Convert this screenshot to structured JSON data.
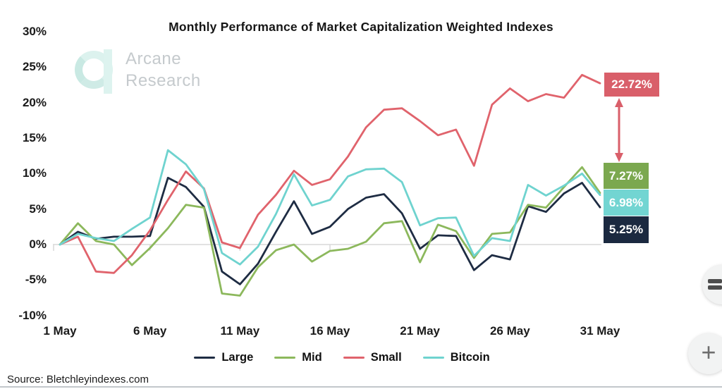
{
  "page": {
    "source_text": "Source: Bletchleyindexes.com"
  },
  "watermark": {
    "line1": "Arcane",
    "line2": "Research"
  },
  "chart_data": {
    "type": "line",
    "title": "Monthly Performance of Market Capitalization Weighted Indexes",
    "xlabel": "",
    "ylabel": "",
    "ylim": [
      -10,
      30
    ],
    "grid": "zero-line-only",
    "zero_line_color": "#d9d9d9",
    "legend_position": "bottom",
    "x_days": [
      1,
      2,
      3,
      4,
      5,
      6,
      7,
      8,
      9,
      10,
      11,
      12,
      13,
      14,
      15,
      16,
      17,
      18,
      19,
      20,
      21,
      22,
      23,
      24,
      25,
      26,
      27,
      28,
      29,
      30,
      31
    ],
    "xticks": [
      {
        "label": "1 May",
        "day": 1
      },
      {
        "label": "6 May",
        "day": 6
      },
      {
        "label": "11 May",
        "day": 11
      },
      {
        "label": "16 May",
        "day": 16
      },
      {
        "label": "21 May",
        "day": 21
      },
      {
        "label": "26 May",
        "day": 26
      },
      {
        "label": "31 May",
        "day": 31
      }
    ],
    "yticks": [
      {
        "label": "30%",
        "value": 30
      },
      {
        "label": "25%",
        "value": 25
      },
      {
        "label": "20%",
        "value": 20
      },
      {
        "label": "15%",
        "value": 15
      },
      {
        "label": "10%",
        "value": 10
      },
      {
        "label": "5%",
        "value": 5
      },
      {
        "label": "0%",
        "value": 0
      },
      {
        "label": "-5%",
        "value": -5
      },
      {
        "label": "-10%",
        "value": -10
      }
    ],
    "series": [
      {
        "name": "Large",
        "color": "#1e2c43",
        "values": [
          0,
          1.8,
          0.8,
          1.1,
          1.1,
          1.2,
          9.4,
          8.1,
          5.3,
          -3.8,
          -5.6,
          -2.7,
          1.8,
          6.1,
          1.5,
          2.5,
          5.0,
          6.6,
          7.1,
          4.4,
          -0.6,
          1.3,
          1.2,
          -3.6,
          -1.5,
          -2.1,
          5.4,
          4.6,
          7.2,
          8.7,
          5.25
        ]
      },
      {
        "name": "Mid",
        "color": "#8cb85c",
        "values": [
          0,
          3.0,
          0.5,
          0.0,
          -2.9,
          -0.5,
          2.3,
          5.6,
          5.2,
          -6.9,
          -7.2,
          -3.2,
          -0.8,
          0.0,
          -2.4,
          -0.9,
          -0.6,
          0.4,
          3.0,
          3.3,
          -2.5,
          2.8,
          1.9,
          -1.9,
          1.5,
          1.7,
          5.6,
          5.2,
          8.1,
          10.9,
          7.27
        ]
      },
      {
        "name": "Small",
        "color": "#e0636c",
        "values": [
          0,
          1.1,
          -3.8,
          -4.0,
          -1.5,
          2.0,
          6.3,
          10.3,
          7.9,
          0.3,
          -0.5,
          4.2,
          7.0,
          10.4,
          8.4,
          9.2,
          12.4,
          16.5,
          19.0,
          19.2,
          17.4,
          15.4,
          16.2,
          11.1,
          19.7,
          22.0,
          20.2,
          21.2,
          20.7,
          23.9,
          22.72
        ]
      },
      {
        "name": "Bitcoin",
        "color": "#6fd3cf",
        "values": [
          0,
          1.5,
          0.9,
          0.5,
          2.2,
          3.8,
          13.3,
          11.3,
          7.8,
          -1.2,
          -2.8,
          -0.3,
          4.3,
          9.9,
          5.5,
          6.3,
          9.6,
          10.6,
          10.7,
          8.8,
          2.7,
          3.7,
          3.8,
          -1.6,
          0.9,
          0.5,
          8.4,
          6.9,
          8.3,
          10.0,
          6.98
        ]
      }
    ],
    "end_labels": [
      {
        "text": "22.72%",
        "bg": "#d95f6a",
        "series": "Small"
      },
      {
        "text": "7.27%",
        "bg": "#7ba84f",
        "series": "Mid"
      },
      {
        "text": "6.98%",
        "bg": "#72d5d2",
        "series": "Bitcoin"
      },
      {
        "text": "5.25%",
        "bg": "#1b2940",
        "series": "Large"
      }
    ],
    "annotation_arrow": {
      "color": "#d95f6a",
      "between": [
        "22.72%",
        "7.27%"
      ]
    }
  },
  "floating_buttons": {
    "plus_label": "+"
  }
}
